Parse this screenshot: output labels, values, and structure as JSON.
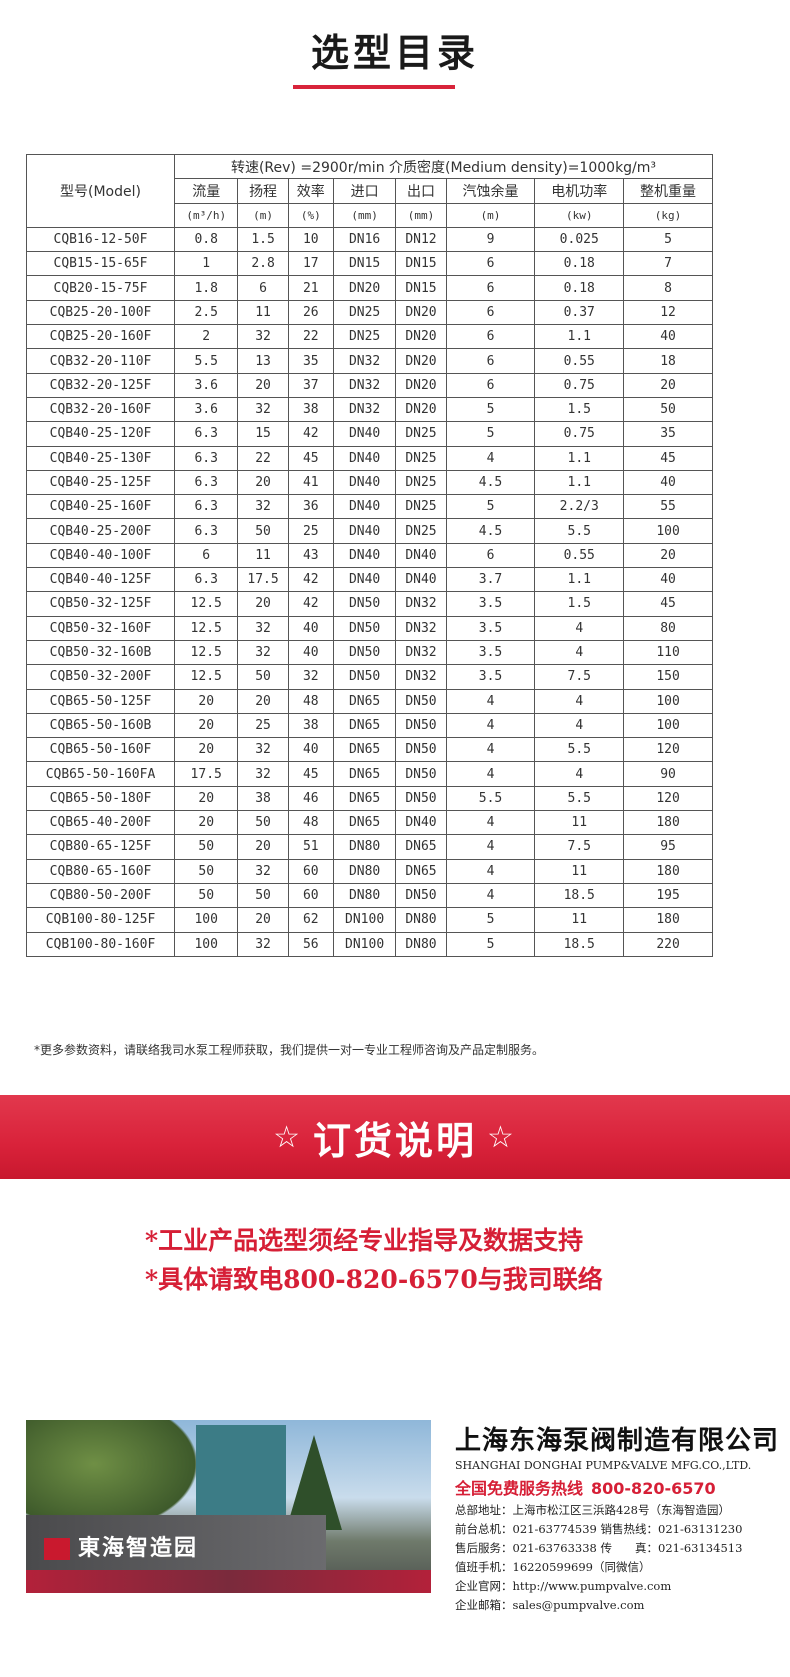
{
  "title": "选型目录",
  "table": {
    "condition": "转速(Rev) =2900r/min  介质密度(Medium density)=1000kg/m³",
    "model_header": "型号(Model)",
    "columns": [
      "流量",
      "扬程",
      "效率",
      "进口",
      "出口",
      "汽蚀余量",
      "电机功率",
      "整机重量"
    ],
    "units": [
      "(m³/h)",
      "(m)",
      "(%)",
      "(mm)",
      "(mm)",
      "(m)",
      "(kw)",
      "(kg)"
    ],
    "rows": [
      [
        "CQB16-12-50F",
        "0.8",
        "1.5",
        "10",
        "DN16",
        "DN12",
        "9",
        "0.025",
        "5"
      ],
      [
        "CQB15-15-65F",
        "1",
        "2.8",
        "17",
        "DN15",
        "DN15",
        "6",
        "0.18",
        "7"
      ],
      [
        "CQB20-15-75F",
        "1.8",
        "6",
        "21",
        "DN20",
        "DN15",
        "6",
        "0.18",
        "8"
      ],
      [
        "CQB25-20-100F",
        "2.5",
        "11",
        "26",
        "DN25",
        "DN20",
        "6",
        "0.37",
        "12"
      ],
      [
        "CQB25-20-160F",
        "2",
        "32",
        "22",
        "DN25",
        "DN20",
        "6",
        "1.1",
        "40"
      ],
      [
        "CQB32-20-110F",
        "5.5",
        "13",
        "35",
        "DN32",
        "DN20",
        "6",
        "0.55",
        "18"
      ],
      [
        "CQB32-20-125F",
        "3.6",
        "20",
        "37",
        "DN32",
        "DN20",
        "6",
        "0.75",
        "20"
      ],
      [
        "CQB32-20-160F",
        "3.6",
        "32",
        "38",
        "DN32",
        "DN20",
        "5",
        "1.5",
        "50"
      ],
      [
        "CQB40-25-120F",
        "6.3",
        "15",
        "42",
        "DN40",
        "DN25",
        "5",
        "0.75",
        "35"
      ],
      [
        "CQB40-25-130F",
        "6.3",
        "22",
        "45",
        "DN40",
        "DN25",
        "4",
        "1.1",
        "45"
      ],
      [
        "CQB40-25-125F",
        "6.3",
        "20",
        "41",
        "DN40",
        "DN25",
        "4.5",
        "1.1",
        "40"
      ],
      [
        "CQB40-25-160F",
        "6.3",
        "32",
        "36",
        "DN40",
        "DN25",
        "5",
        "2.2/3",
        "55"
      ],
      [
        "CQB40-25-200F",
        "6.3",
        "50",
        "25",
        "DN40",
        "DN25",
        "4.5",
        "5.5",
        "100"
      ],
      [
        "CQB40-40-100F",
        "6",
        "11",
        "43",
        "DN40",
        "DN40",
        "6",
        "0.55",
        "20"
      ],
      [
        "CQB40-40-125F",
        "6.3",
        "17.5",
        "42",
        "DN40",
        "DN40",
        "3.7",
        "1.1",
        "40"
      ],
      [
        "CQB50-32-125F",
        "12.5",
        "20",
        "42",
        "DN50",
        "DN32",
        "3.5",
        "1.5",
        "45"
      ],
      [
        "CQB50-32-160F",
        "12.5",
        "32",
        "40",
        "DN50",
        "DN32",
        "3.5",
        "4",
        "80"
      ],
      [
        "CQB50-32-160B",
        "12.5",
        "32",
        "40",
        "DN50",
        "DN32",
        "3.5",
        "4",
        "110"
      ],
      [
        "CQB50-32-200F",
        "12.5",
        "50",
        "32",
        "DN50",
        "DN32",
        "3.5",
        "7.5",
        "150"
      ],
      [
        "CQB65-50-125F",
        "20",
        "20",
        "48",
        "DN65",
        "DN50",
        "4",
        "4",
        "100"
      ],
      [
        "CQB65-50-160B",
        "20",
        "25",
        "38",
        "DN65",
        "DN50",
        "4",
        "4",
        "100"
      ],
      [
        "CQB65-50-160F",
        "20",
        "32",
        "40",
        "DN65",
        "DN50",
        "4",
        "5.5",
        "120"
      ],
      [
        "CQB65-50-160FA",
        "17.5",
        "32",
        "45",
        "DN65",
        "DN50",
        "4",
        "4",
        "90"
      ],
      [
        "CQB65-50-180F",
        "20",
        "38",
        "46",
        "DN65",
        "DN50",
        "5.5",
        "5.5",
        "120"
      ],
      [
        "CQB65-40-200F",
        "20",
        "50",
        "48",
        "DN65",
        "DN40",
        "4",
        "11",
        "180"
      ],
      [
        "CQB80-65-125F",
        "50",
        "20",
        "51",
        "DN80",
        "DN65",
        "4",
        "7.5",
        "95"
      ],
      [
        "CQB80-65-160F",
        "50",
        "32",
        "60",
        "DN80",
        "DN65",
        "4",
        "11",
        "180"
      ],
      [
        "CQB80-50-200F",
        "50",
        "50",
        "60",
        "DN80",
        "DN50",
        "4",
        "18.5",
        "195"
      ],
      [
        "CQB100-80-125F",
        "100",
        "20",
        "62",
        "DN100",
        "DN80",
        "5",
        "11",
        "180"
      ],
      [
        "CQB100-80-160F",
        "100",
        "32",
        "56",
        "DN100",
        "DN80",
        "5",
        "18.5",
        "220"
      ]
    ]
  },
  "note": "*更多参数资料，请联络我司水泵工程师获取，我们提供一对一专业工程师咨询及产品定制服务。",
  "order": {
    "star": "☆",
    "title": "订货说明",
    "line1": "*工业产品选型须经专业指导及数据支持",
    "line2": "*具体请致电800-820-6570与我司联络"
  },
  "photo_sign": "東海智造园",
  "company": {
    "name_cn": "上海东海泵阀制造有限公司",
    "name_en": "SHANGHAI DONGHAI PUMP&VALVE MFG.CO.,LTD.",
    "hotline_label": "全国免费服务热线",
    "hotline": "800-820-6570",
    "lines": [
      "总部地址：上海市松江区三浜路428号（东海智造园）",
      "前台总机：021-63774539   销售热线：021-63131230",
      "售后服务：021-63763338   传　　真：021-63134513",
      "值班手机：16220599699（同微信）",
      "企业官网：http://www.pumpvalve.com",
      "企业邮箱：sales@pumpvalve.com"
    ]
  },
  "colors": {
    "accent": "#d8243a",
    "banner": "#d9223a"
  }
}
